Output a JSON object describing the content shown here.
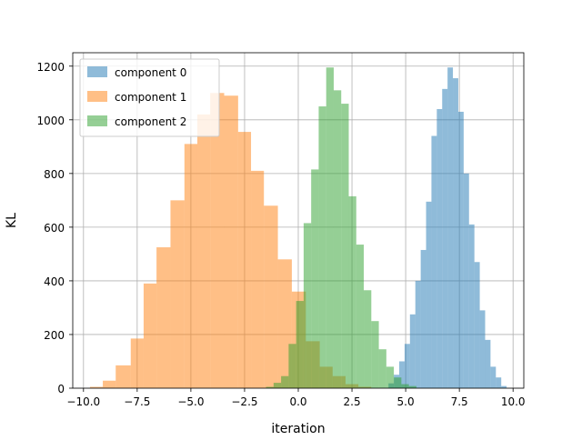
{
  "chart_data": {
    "type": "bar",
    "subtype": "histogram",
    "title": "",
    "xlabel": "iteration",
    "ylabel": "KL",
    "xlim": [
      -10.5,
      10.5
    ],
    "ylim": [
      0,
      1250
    ],
    "xticks": [
      -10.0,
      -7.5,
      -5.0,
      -2.5,
      0.0,
      2.5,
      5.0,
      7.5,
      10.0
    ],
    "xtick_labels": [
      "−10.0",
      "−7.5",
      "−5.0",
      "−2.5",
      "0.0",
      "2.5",
      "5.0",
      "7.5",
      "10.0"
    ],
    "yticks": [
      0,
      200,
      400,
      600,
      800,
      1000,
      1200
    ],
    "ytick_labels": [
      "0",
      "200",
      "400",
      "600",
      "800",
      "1000",
      "1200"
    ],
    "grid": true,
    "legend_position": "top-left",
    "series": [
      {
        "name": "component 0",
        "color": "#1f77b4",
        "alpha": 0.5,
        "bins": [
          [
            4.2,
            4.45,
            18
          ],
          [
            4.45,
            4.7,
            50
          ],
          [
            4.7,
            4.95,
            100
          ],
          [
            4.95,
            5.2,
            165
          ],
          [
            5.2,
            5.45,
            275
          ],
          [
            5.45,
            5.7,
            400
          ],
          [
            5.7,
            5.95,
            515
          ],
          [
            5.95,
            6.2,
            695
          ],
          [
            6.2,
            6.45,
            940
          ],
          [
            6.45,
            6.7,
            1040
          ],
          [
            6.7,
            6.95,
            1115
          ],
          [
            6.95,
            7.2,
            1195
          ],
          [
            7.2,
            7.45,
            1155
          ],
          [
            7.45,
            7.7,
            1030
          ],
          [
            7.7,
            7.95,
            800
          ],
          [
            7.95,
            8.2,
            610
          ],
          [
            8.2,
            8.45,
            470
          ],
          [
            8.45,
            8.7,
            290
          ],
          [
            8.7,
            8.95,
            180
          ],
          [
            8.95,
            9.2,
            80
          ],
          [
            9.2,
            9.45,
            40
          ],
          [
            9.45,
            9.7,
            8
          ]
        ]
      },
      {
        "name": "component 1",
        "color": "#ff7f0e",
        "alpha": 0.5,
        "bins": [
          [
            -9.7,
            -9.1,
            5
          ],
          [
            -9.1,
            -8.5,
            28
          ],
          [
            -8.5,
            -7.8,
            85
          ],
          [
            -7.8,
            -7.2,
            185
          ],
          [
            -7.2,
            -6.6,
            390
          ],
          [
            -6.6,
            -5.95,
            525
          ],
          [
            -5.95,
            -5.3,
            700
          ],
          [
            -5.3,
            -4.7,
            910
          ],
          [
            -4.7,
            -4.1,
            1020
          ],
          [
            -4.1,
            -3.45,
            1100
          ],
          [
            -3.45,
            -2.8,
            1090
          ],
          [
            -2.8,
            -2.2,
            955
          ],
          [
            -2.2,
            -1.6,
            810
          ],
          [
            -1.6,
            -0.95,
            680
          ],
          [
            -0.95,
            -0.3,
            480
          ],
          [
            -0.3,
            0.35,
            360
          ],
          [
            0.35,
            1.0,
            175
          ],
          [
            1.0,
            1.6,
            80
          ],
          [
            1.6,
            2.2,
            45
          ],
          [
            2.2,
            2.8,
            15
          ],
          [
            2.8,
            3.4,
            5
          ]
        ]
      },
      {
        "name": "component 2",
        "color": "#2ca02c",
        "alpha": 0.5,
        "bins": [
          [
            -1.5,
            -1.15,
            5
          ],
          [
            -1.15,
            -0.8,
            20
          ],
          [
            -0.8,
            -0.45,
            45
          ],
          [
            -0.45,
            -0.1,
            165
          ],
          [
            -0.1,
            0.25,
            325
          ],
          [
            0.25,
            0.6,
            615
          ],
          [
            0.6,
            0.95,
            815
          ],
          [
            0.95,
            1.3,
            1050
          ],
          [
            1.3,
            1.65,
            1195
          ],
          [
            1.65,
            2.0,
            1110
          ],
          [
            2.0,
            2.35,
            1060
          ],
          [
            2.35,
            2.7,
            715
          ],
          [
            2.7,
            3.05,
            535
          ],
          [
            3.05,
            3.4,
            365
          ],
          [
            3.4,
            3.75,
            250
          ],
          [
            3.75,
            4.1,
            145
          ],
          [
            4.1,
            4.45,
            80
          ],
          [
            4.45,
            4.8,
            40
          ],
          [
            4.8,
            5.15,
            15
          ],
          [
            5.15,
            5.5,
            8
          ]
        ]
      }
    ]
  }
}
